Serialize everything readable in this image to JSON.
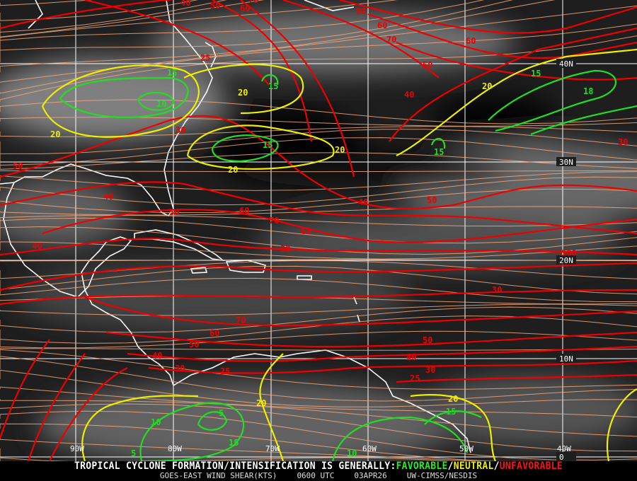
{
  "map": {
    "colors": {
      "favorable": "#22dd22",
      "neutral": "#eeee00",
      "unfavorable": "#ee0000",
      "streamline": "#f4a77a",
      "coast": "#ffffff",
      "grid": "#ffffff"
    },
    "longitude_labels": [
      "90W",
      "80W",
      "70W",
      "60W",
      "50W",
      "40W"
    ],
    "latitude_labels": [
      "40N",
      "30N",
      "20N",
      "10N",
      "0"
    ],
    "contour_labels": [
      {
        "v": "40",
        "c": "r"
      },
      {
        "v": "50",
        "c": "r"
      },
      {
        "v": "60",
        "c": "r"
      },
      {
        "v": "70",
        "c": "r"
      },
      {
        "v": "90",
        "c": "r"
      },
      {
        "v": "60",
        "c": "r"
      },
      {
        "v": "70",
        "c": "r"
      },
      {
        "v": "60",
        "c": "r"
      },
      {
        "v": "50",
        "c": "r"
      },
      {
        "v": "40",
        "c": "r"
      },
      {
        "v": "30",
        "c": "r"
      },
      {
        "v": "25",
        "c": "r"
      },
      {
        "v": "30",
        "c": "r"
      },
      {
        "v": "50",
        "c": "r"
      },
      {
        "v": "40",
        "c": "r"
      },
      {
        "v": "50",
        "c": "r"
      },
      {
        "v": "60",
        "c": "r"
      },
      {
        "v": "70",
        "c": "r"
      },
      {
        "v": "60",
        "c": "r"
      },
      {
        "v": "50",
        "c": "r"
      },
      {
        "v": "40",
        "c": "r"
      },
      {
        "v": "50",
        "c": "r"
      },
      {
        "v": "40",
        "c": "r"
      },
      {
        "v": "100",
        "c": "r"
      },
      {
        "v": "30",
        "c": "r"
      },
      {
        "v": "70",
        "c": "r"
      },
      {
        "v": "60",
        "c": "r"
      },
      {
        "v": "50",
        "c": "r"
      },
      {
        "v": "40",
        "c": "r"
      },
      {
        "v": "30",
        "c": "r"
      },
      {
        "v": "25",
        "c": "r"
      },
      {
        "v": "50",
        "c": "r"
      },
      {
        "v": "40",
        "c": "r"
      },
      {
        "v": "30",
        "c": "r"
      },
      {
        "v": "25",
        "c": "r"
      },
      {
        "v": "20",
        "c": "y"
      },
      {
        "v": "20",
        "c": "y"
      },
      {
        "v": "20",
        "c": "y"
      },
      {
        "v": "20",
        "c": "y"
      },
      {
        "v": "20",
        "c": "y"
      },
      {
        "v": "20",
        "c": "y"
      },
      {
        "v": "20",
        "c": "y"
      },
      {
        "v": "15",
        "c": "g"
      },
      {
        "v": "10",
        "c": "g"
      },
      {
        "v": "15",
        "c": "g"
      },
      {
        "v": "15",
        "c": "g"
      },
      {
        "v": "15",
        "c": "g"
      },
      {
        "v": "15",
        "c": "g"
      },
      {
        "v": "18",
        "c": "g"
      },
      {
        "v": "10",
        "c": "g"
      },
      {
        "v": "5",
        "c": "g"
      },
      {
        "v": "15",
        "c": "g"
      },
      {
        "v": "5",
        "c": "g"
      },
      {
        "v": "10",
        "c": "g"
      },
      {
        "v": "15",
        "c": "g"
      }
    ]
  },
  "footer": {
    "headline_prefix": "TROPICAL CYCLONE FORMATION/INTENSIFICATION IS GENERALLY:",
    "favorable": "FAVORABLE",
    "sep1": "/",
    "neutral": "NEUTRAL",
    "sep2": "/",
    "unfavorable": "UNFAVORABLE",
    "product": "GOES-EAST WIND SHEAR(KTS)",
    "time": "0600 UTC",
    "date": "03APR26",
    "source": "UW-CIMSS/NESDIS"
  }
}
